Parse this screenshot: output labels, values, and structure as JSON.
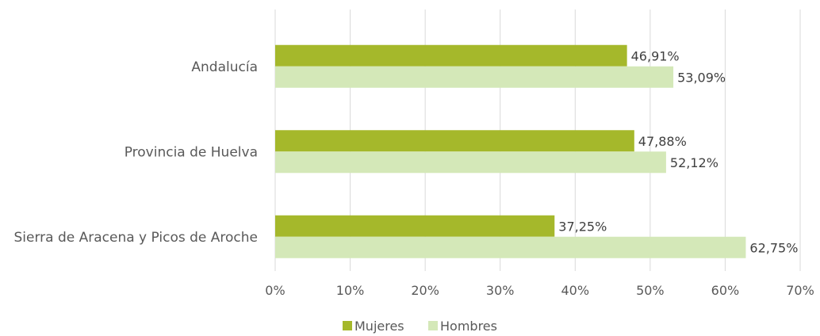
{
  "chart_data": {
    "type": "bar",
    "orientation": "horizontal",
    "categories": [
      "Andalucía",
      "Provincia de Huelva",
      "Sierra de Aracena y Picos de Aroche"
    ],
    "series": [
      {
        "name": "Mujeres",
        "values": [
          46.91,
          47.88,
          37.25
        ],
        "labels": [
          "46,91%",
          "47,88%",
          "37,25%"
        ],
        "color": "#a5b82b"
      },
      {
        "name": "Hombres",
        "values": [
          53.09,
          52.12,
          62.75
        ],
        "labels": [
          "53,09%",
          "52,12%",
          "62,75%"
        ],
        "color": "#d4e8b8"
      }
    ],
    "xlim": [
      0,
      70
    ],
    "ticks": [
      0,
      10,
      20,
      30,
      40,
      50,
      60,
      70
    ],
    "tick_labels": [
      "0%",
      "10%",
      "20%",
      "30%",
      "40%",
      "50%",
      "60%",
      "70%"
    ],
    "grid": true,
    "legend_position": "bottom"
  }
}
